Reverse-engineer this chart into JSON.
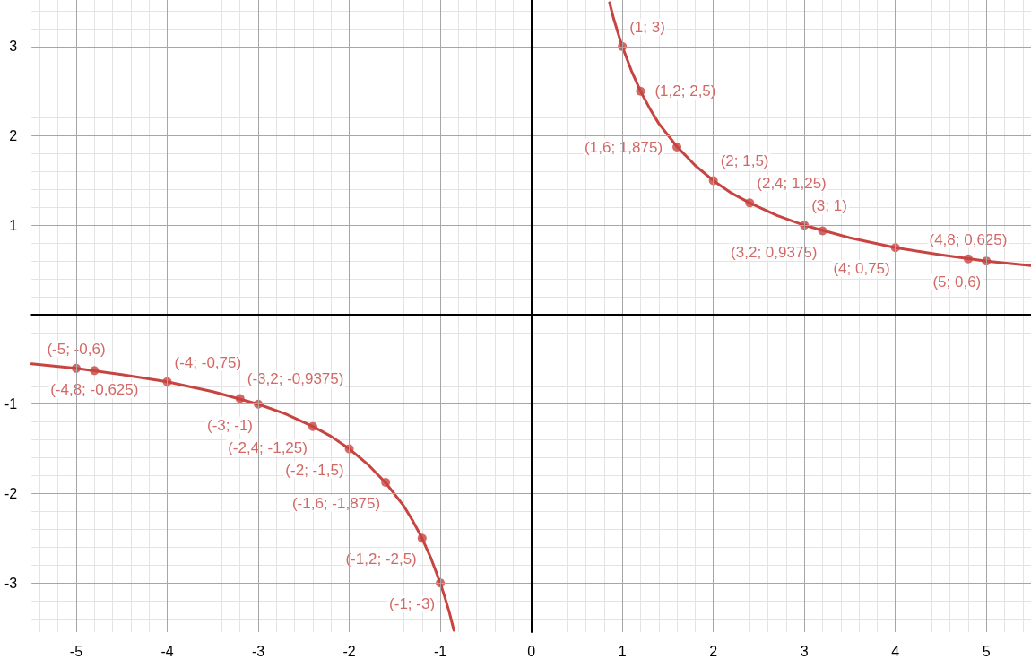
{
  "chart_data": {
    "type": "line",
    "xlim": [
      -5.49,
      5.49
    ],
    "ylim": [
      -3.55,
      3.52
    ],
    "xticks": [
      -5,
      -4,
      -3,
      -2,
      -1,
      0,
      1,
      2,
      3,
      4,
      5
    ],
    "yticks": [
      -3,
      -2,
      -1,
      {
        "value": 0,
        "label": null
      },
      1,
      2,
      3
    ],
    "grid": true,
    "line_style": "solid",
    "series": [
      {
        "type": "line",
        "marker": "none",
        "color": "#c74440",
        "x": [
          0.86,
          0.9,
          0.95,
          1,
          1.1,
          1.2,
          1.3,
          1.4,
          1.6,
          1.8,
          2,
          2.2,
          2.4,
          2.7,
          3,
          3.5,
          4,
          4.5,
          5,
          5.49
        ],
        "values": [
          3.49,
          3.33,
          3.16,
          3,
          2.73,
          2.5,
          2.31,
          2.14,
          1.88,
          1.67,
          1.5,
          1.36,
          1.25,
          1.11,
          1,
          0.86,
          0.75,
          0.67,
          0.6,
          0.55
        ]
      },
      {
        "type": "line",
        "marker": "none",
        "color": "#c74440",
        "x": [
          -5.49,
          -5,
          -4.5,
          -4,
          -3.5,
          -3,
          -2.7,
          -2.4,
          -2.2,
          -2,
          -1.8,
          -1.6,
          -1.4,
          -1.3,
          -1.2,
          -1.1,
          -1,
          -0.95,
          -0.9,
          -0.85
        ],
        "values": [
          -0.55,
          -0.6,
          -0.67,
          -0.75,
          -0.86,
          -1,
          -1.11,
          -1.25,
          -1.36,
          -1.5,
          -1.67,
          -1.88,
          -2.14,
          -2.31,
          -2.5,
          -2.73,
          -3,
          -3.16,
          -3.33,
          -3.53
        ]
      },
      {
        "type": "scatter",
        "marker": "circle",
        "color": "#c74440",
        "x": [
          1,
          1.2,
          1.6,
          2,
          2.4,
          3,
          3.2,
          4,
          4.8,
          5
        ],
        "values": [
          3,
          2.5,
          1.875,
          1.5,
          1.25,
          1,
          0.9375,
          0.75,
          0.625,
          0.6
        ],
        "value_labels": [
          "(1; 3)",
          "(1,2; 2,5)",
          "(1,6; 1,875)",
          "(2; 1,5)",
          "(2,4; 1,25)",
          "(3; 1)",
          "(3,2; 0,9375)",
          "(4; 0,75)",
          "(4,8; 0,625)",
          "(5; 0,6)"
        ]
      },
      {
        "type": "scatter",
        "marker": "circle",
        "color": "#c74440",
        "x": [
          -5,
          -4.8,
          -4,
          -3.2,
          -3,
          -2.4,
          -2,
          -1.6,
          -1.2,
          -1
        ],
        "values": [
          -0.6,
          -0.625,
          -0.75,
          -0.9375,
          -1,
          -1.25,
          -1.5,
          -1.875,
          -2.5,
          -3
        ],
        "value_labels": [
          "(-5; -0,6)",
          "(-4,8; -0,625)",
          "(-4; -0,75)",
          "(-3,2; -0,9375)",
          "(-3; -1)",
          "(-2,4; -1,25)",
          "(-2; -1,5)",
          "(-1,6; -1,875)",
          "(-1,2; -2,5)",
          "(-1; -3)"
        ]
      }
    ]
  }
}
